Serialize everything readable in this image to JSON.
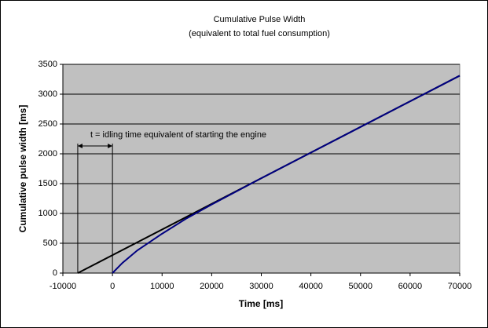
{
  "chart_data": {
    "type": "line",
    "title": "Cumulative Pulse Width",
    "subtitle": "(equivalent to total fuel consumption)",
    "x_label": "Time [ms]",
    "y_label": "Cumulative pulse width [ms]",
    "annotation": "t = idling time equivalent of starting the engine",
    "series": [
      {
        "color": "#000000",
        "x": [
          -7000,
          70000
        ],
        "values": [
          0,
          3310
        ]
      },
      {
        "color": "#000080",
        "x": [
          0,
          2000,
          5000,
          10000,
          15000,
          20000,
          25000,
          30000,
          40000,
          50000,
          60000,
          70000
        ],
        "values": [
          0,
          170,
          380,
          660,
          920,
          1150,
          1370,
          1590,
          2020,
          2450,
          2880,
          3310
        ]
      }
    ],
    "xlim": [
      -10000,
      70000
    ],
    "xticks": [
      -10000,
      0,
      10000,
      20000,
      30000,
      40000,
      50000,
      60000,
      70000
    ],
    "ylim": [
      0,
      3500
    ],
    "yticks": [
      0,
      500,
      1000,
      1500,
      2000,
      2500,
      3000,
      3500
    ],
    "grid": true,
    "plot_background": "#c0c0c0"
  }
}
